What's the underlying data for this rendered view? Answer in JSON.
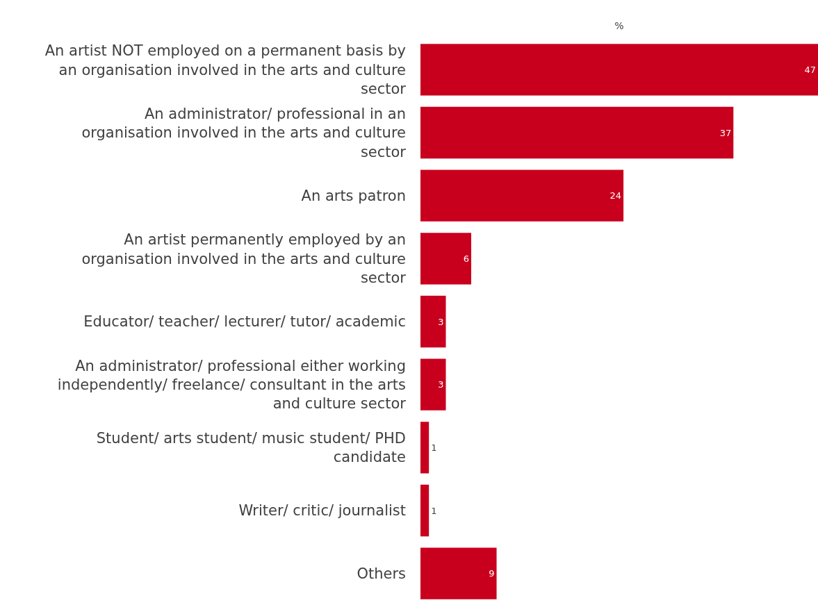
{
  "chart_data": {
    "type": "bar",
    "orientation": "horizontal",
    "xlabel": "%",
    "categories": [
      "An artist NOT employed on a permanent basis by an organisation involved in the arts and culture sector",
      "An administrator/ professional in an organisation involved in the arts and culture sector",
      "An arts patron",
      "An artist permanently employed by an organisation involved in the arts and culture sector",
      "Educator/ teacher/ lecturer/ tutor/ academic",
      "An administrator/ professional either working independently/ freelance/ consultant in the arts and culture sector",
      "Student/ arts student/ music student/ PHD candidate",
      "Writer/ critic/ journalist",
      "Others"
    ],
    "values": [
      47,
      37,
      24,
      6,
      3,
      3,
      1,
      1,
      9
    ],
    "color": "#c8001e",
    "data_labels": true
  }
}
